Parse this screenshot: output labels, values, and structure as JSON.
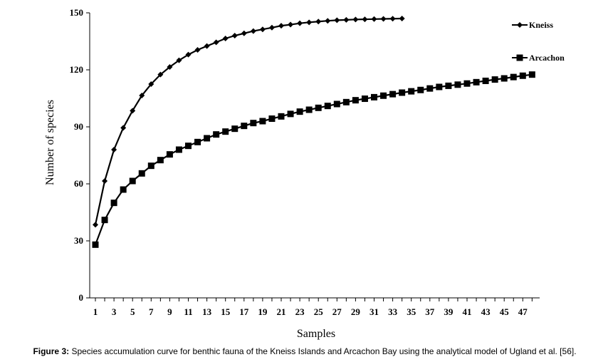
{
  "chart_data": {
    "type": "line",
    "xlabel": "Samples",
    "ylabel": "Number of species",
    "xlim": [
      1,
      48
    ],
    "ylim": [
      0,
      150
    ],
    "yticks": [
      0,
      30,
      60,
      90,
      120,
      150
    ],
    "xticks": [
      1,
      3,
      5,
      7,
      9,
      11,
      13,
      15,
      17,
      19,
      21,
      23,
      25,
      27,
      29,
      31,
      33,
      35,
      37,
      39,
      41,
      43,
      45,
      47
    ],
    "grid": false,
    "legend_position": "top-right",
    "series": [
      {
        "name": "Kneiss",
        "marker": "diamond",
        "x": [
          1,
          2,
          3,
          4,
          5,
          6,
          7,
          8,
          9,
          10,
          11,
          12,
          13,
          14,
          15,
          16,
          17,
          18,
          19,
          20,
          21,
          22,
          23,
          24,
          25,
          26,
          27,
          28,
          29,
          30,
          31,
          32,
          33,
          34
        ],
        "values": [
          38.5,
          61.5,
          78,
          89.5,
          98.5,
          106.5,
          112.5,
          117.5,
          121.5,
          125,
          128,
          130.5,
          132.5,
          134.5,
          136.5,
          138,
          139.2,
          140.4,
          141.3,
          142.2,
          143.2,
          143.8,
          144.5,
          145,
          145.4,
          145.8,
          146.1,
          146.3,
          146.5,
          146.6,
          146.7,
          146.8,
          146.9,
          147
        ]
      },
      {
        "name": "Arcachon",
        "marker": "square",
        "x": [
          1,
          2,
          3,
          4,
          5,
          6,
          7,
          8,
          9,
          10,
          11,
          12,
          13,
          14,
          15,
          16,
          17,
          18,
          19,
          20,
          21,
          22,
          23,
          24,
          25,
          26,
          27,
          28,
          29,
          30,
          31,
          32,
          33,
          34,
          35,
          36,
          37,
          38,
          39,
          40,
          41,
          42,
          43,
          44,
          45,
          46,
          47,
          48
        ],
        "values": [
          28,
          41,
          50,
          57,
          61.5,
          65.5,
          69.5,
          72.5,
          75.5,
          78,
          80,
          82,
          84,
          86,
          87.5,
          89,
          90.5,
          92,
          93,
          94.3,
          95.5,
          96.8,
          98,
          99,
          100,
          101,
          102,
          103,
          104,
          104.8,
          105.6,
          106.4,
          107.2,
          108,
          108.7,
          109.4,
          110.2,
          111,
          111.6,
          112.2,
          112.8,
          113.5,
          114.2,
          114.9,
          115.5,
          116.2,
          116.9,
          117.5
        ]
      }
    ],
    "caption_label": "Figure 3:",
    "caption_text": " Species accumulation curve for benthic fauna of the Kneiss Islands and Arcachon Bay using the analytical model of Ugland et al. [56]."
  },
  "colors": {
    "series": "#000000",
    "axis": "#000000"
  }
}
